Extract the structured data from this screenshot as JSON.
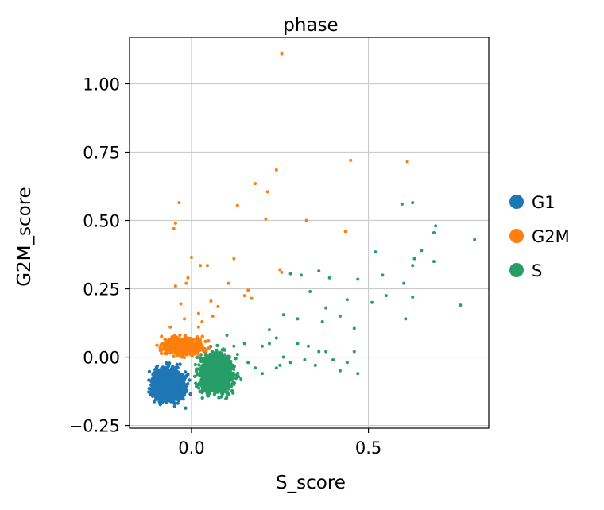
{
  "chart_data": {
    "type": "scatter",
    "title": "phase",
    "xlabel": "S_score",
    "ylabel": "G2M_score",
    "xlim": [
      -0.175,
      0.84
    ],
    "ylim": [
      -0.26,
      1.17
    ],
    "xticks": [
      0.0,
      0.5
    ],
    "xtick_labels": [
      "0.0",
      "0.5"
    ],
    "yticks": [
      -0.25,
      0.0,
      0.25,
      0.5,
      0.75,
      1.0
    ],
    "ytick_labels": [
      "−0.25",
      "0.00",
      "0.25",
      "0.50",
      "0.75",
      "1.00"
    ],
    "grid": true,
    "legend_position": "right",
    "colors": {
      "G1": "#1f77b4",
      "G2M": "#ff7f0e",
      "S": "#279e68"
    },
    "series": [
      {
        "name": "G1",
        "cluster": {
          "x_range": [
            -0.13,
            0.0
          ],
          "y_range": [
            -0.19,
            -0.01
          ],
          "count": 1400
        },
        "points": []
      },
      {
        "name": "G2M",
        "cluster": {
          "x_range": [
            -0.11,
            0.06
          ],
          "y_range": [
            -0.01,
            0.09
          ],
          "count": 450
        },
        "points": [
          [
            0.255,
            1.11
          ],
          [
            0.45,
            0.72
          ],
          [
            0.61,
            0.715
          ],
          [
            0.24,
            0.685
          ],
          [
            0.18,
            0.635
          ],
          [
            0.215,
            0.605
          ],
          [
            -0.035,
            0.565
          ],
          [
            0.13,
            0.555
          ],
          [
            0.21,
            0.505
          ],
          [
            0.325,
            0.5
          ],
          [
            -0.045,
            0.49
          ],
          [
            -0.05,
            0.47
          ],
          [
            0.435,
            0.46
          ],
          [
            0.0,
            0.365
          ],
          [
            0.12,
            0.36
          ],
          [
            0.025,
            0.335
          ],
          [
            0.045,
            0.335
          ],
          [
            0.25,
            0.32
          ],
          [
            0.255,
            0.31
          ],
          [
            -0.01,
            0.29
          ],
          [
            -0.015,
            0.27
          ],
          [
            -0.045,
            0.26
          ],
          [
            0.105,
            0.27
          ],
          [
            0.16,
            0.245
          ],
          [
            0.17,
            0.215
          ],
          [
            -0.03,
            0.195
          ],
          [
            0.055,
            0.205
          ],
          [
            0.15,
            0.225
          ],
          [
            0.02,
            0.16
          ],
          [
            0.075,
            0.185
          ],
          [
            -0.02,
            0.14
          ],
          [
            0.03,
            0.13
          ],
          [
            0.06,
            0.15
          ],
          [
            -0.06,
            0.11
          ],
          [
            0.02,
            0.11
          ]
        ]
      },
      {
        "name": "S",
        "cluster": {
          "x_range": [
            0.0,
            0.14
          ],
          "y_range": [
            -0.17,
            0.05
          ],
          "count": 1200
        },
        "points": [
          [
            0.8,
            0.43
          ],
          [
            0.69,
            0.48
          ],
          [
            0.685,
            0.455
          ],
          [
            0.595,
            0.56
          ],
          [
            0.625,
            0.565
          ],
          [
            0.52,
            0.385
          ],
          [
            0.65,
            0.39
          ],
          [
            0.63,
            0.36
          ],
          [
            0.685,
            0.35
          ],
          [
            0.625,
            0.335
          ],
          [
            0.28,
            0.305
          ],
          [
            0.31,
            0.3
          ],
          [
            0.36,
            0.315
          ],
          [
            0.39,
            0.29
          ],
          [
            0.47,
            0.285
          ],
          [
            0.54,
            0.3
          ],
          [
            0.44,
            0.21
          ],
          [
            0.51,
            0.2
          ],
          [
            0.55,
            0.225
          ],
          [
            0.6,
            0.27
          ],
          [
            0.625,
            0.22
          ],
          [
            0.605,
            0.14
          ],
          [
            0.76,
            0.19
          ],
          [
            0.335,
            0.24
          ],
          [
            0.38,
            0.18
          ],
          [
            0.46,
            0.105
          ],
          [
            0.42,
            0.15
          ],
          [
            0.37,
            0.13
          ],
          [
            0.3,
            0.14
          ],
          [
            0.26,
            0.155
          ],
          [
            0.24,
            0.07
          ],
          [
            0.2,
            0.04
          ],
          [
            0.22,
            0.05
          ],
          [
            0.26,
            0.0
          ],
          [
            0.28,
            -0.02
          ],
          [
            0.33,
            0.04
          ],
          [
            0.36,
            0.02
          ],
          [
            0.4,
            -0.01
          ],
          [
            0.44,
            -0.02
          ],
          [
            0.46,
            0.02
          ],
          [
            0.47,
            -0.06
          ],
          [
            0.42,
            -0.05
          ],
          [
            0.38,
            0.02
          ],
          [
            0.32,
            -0.01
          ],
          [
            0.25,
            -0.03
          ],
          [
            0.2,
            -0.06
          ],
          [
            0.18,
            -0.04
          ],
          [
            0.15,
            0.05
          ],
          [
            0.13,
            0.01
          ],
          [
            0.16,
            -0.02
          ],
          [
            0.14,
            -0.08
          ],
          [
            0.12,
            -0.1
          ],
          [
            0.22,
            0.1
          ],
          [
            0.24,
            -0.04
          ],
          [
            0.3,
            0.05
          ],
          [
            0.35,
            -0.03
          ],
          [
            0.1,
            0.08
          ],
          [
            0.09,
            0.03
          ],
          [
            0.12,
            0.04
          ],
          [
            0.11,
            -0.05
          ]
        ]
      }
    ]
  }
}
